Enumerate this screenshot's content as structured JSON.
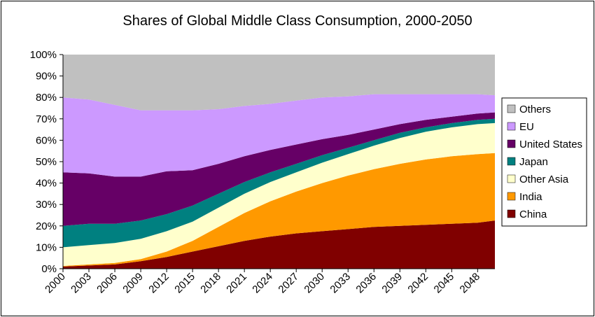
{
  "chart_data": {
    "type": "area",
    "stacked": true,
    "title": "Shares of Global Middle Class Consumption, 2000-2050",
    "xlabel": "",
    "ylabel": "",
    "x": [
      2000,
      2003,
      2006,
      2009,
      2012,
      2015,
      2018,
      2021,
      2024,
      2027,
      2030,
      2033,
      2036,
      2039,
      2042,
      2045,
      2048,
      2050
    ],
    "x_ticks": [
      "2000",
      "2003",
      "2006",
      "2009",
      "2012",
      "2015",
      "2018",
      "2021",
      "2024",
      "2027",
      "2030",
      "2033",
      "2036",
      "2039",
      "2042",
      "2045",
      "2048"
    ],
    "y_ticks": [
      "0%",
      "10%",
      "20%",
      "30%",
      "40%",
      "50%",
      "60%",
      "70%",
      "80%",
      "90%",
      "100%"
    ],
    "ylim": [
      0,
      100
    ],
    "unit": "%",
    "legend_position": "right",
    "series": [
      {
        "name": "China",
        "color": "#800000",
        "values": [
          1,
          1.5,
          2,
          3.5,
          5.5,
          8,
          10.5,
          13,
          15,
          16.5,
          17.5,
          18.5,
          19.5,
          20,
          20.5,
          21,
          21.5,
          22.5
        ]
      },
      {
        "name": "India",
        "color": "#ff9900",
        "values": [
          0.3,
          0.5,
          0.7,
          1,
          2.5,
          5,
          9,
          13,
          16.5,
          19.5,
          22.5,
          25,
          27,
          29,
          30.5,
          31.5,
          32,
          31.5
        ]
      },
      {
        "name": "Other Asia",
        "color": "#ffffcc",
        "values": [
          8.7,
          9,
          9.3,
          9.5,
          9.5,
          9,
          9,
          9,
          9,
          9,
          9.5,
          10,
          11,
          12,
          13,
          13.5,
          14,
          14
        ]
      },
      {
        "name": "Japan",
        "color": "#008080",
        "values": [
          10,
          10,
          9,
          8.5,
          8,
          7.5,
          6.5,
          5.5,
          4.5,
          4,
          3.5,
          3,
          2.5,
          2.5,
          2,
          2,
          2,
          2
        ]
      },
      {
        "name": "United States",
        "color": "#660066",
        "values": [
          25,
          23.5,
          22,
          20.5,
          20,
          16.5,
          14,
          12,
          10.5,
          9,
          7.5,
          6,
          5,
          4,
          3.5,
          3,
          3,
          3
        ]
      },
      {
        "name": "EU",
        "color": "#cc99ff",
        "values": [
          35,
          34.5,
          33.5,
          31,
          28.5,
          28,
          25.5,
          23.5,
          21.5,
          20.5,
          19.5,
          18,
          16.5,
          14,
          12,
          10.5,
          9,
          8
        ]
      },
      {
        "name": "Others",
        "color": "#c0c0c0",
        "values": [
          20,
          21,
          23.5,
          26,
          26,
          26,
          25.5,
          24,
          23,
          21.5,
          20,
          19.5,
          18.5,
          18.5,
          18.5,
          18.5,
          18.5,
          19
        ]
      }
    ],
    "legend_order": [
      "Others",
      "EU",
      "United States",
      "Japan",
      "Other Asia",
      "India",
      "China"
    ]
  }
}
